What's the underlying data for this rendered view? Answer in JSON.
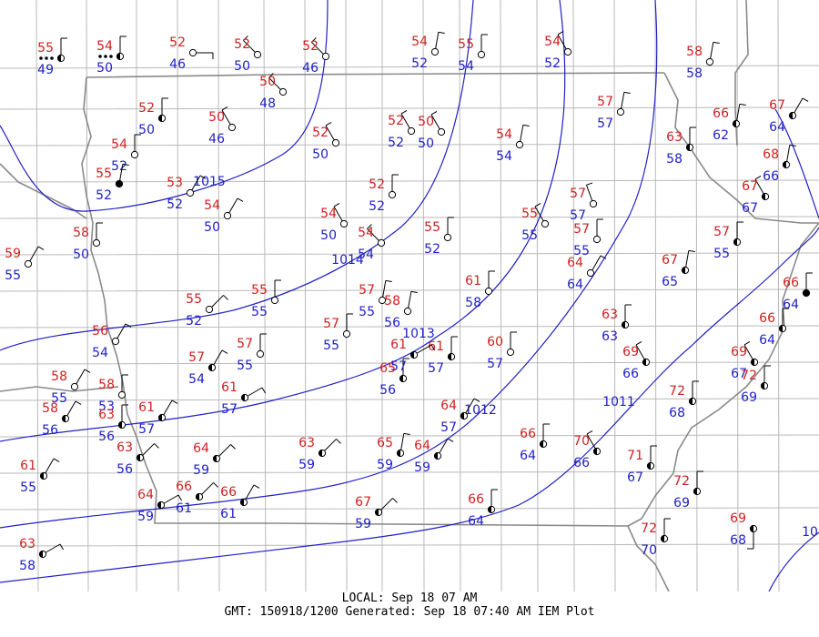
{
  "footer": {
    "local_line": "LOCAL: Sep 18 07 AM",
    "gmt_line": "GMT: 150918/1200 Generated: Sep 18 07:40 AM IEM Plot"
  },
  "colors": {
    "temperature": "#d02020",
    "dewpoint": "#2020c8",
    "isobar": "#2020c8",
    "county_line": "#b4b4b4",
    "state_line": "#8c8c8c"
  },
  "isobar_labels": [
    "1015",
    "1014",
    "1013",
    "1012",
    "1011",
    "10"
  ],
  "stations": [
    {
      "t": "55",
      "d": "49",
      "wx": "rain"
    },
    {
      "t": "54",
      "d": "50",
      "wx": "rain"
    },
    {
      "t": "52",
      "d": "46"
    },
    {
      "t": "52",
      "d": "50"
    },
    {
      "t": "52",
      "d": "46"
    },
    {
      "t": "54",
      "d": "52"
    },
    {
      "t": "55",
      "d": "54"
    },
    {
      "t": "54",
      "d": "52"
    },
    {
      "t": "58",
      "d": "58"
    },
    {
      "t": "50",
      "d": "48"
    },
    {
      "t": "52",
      "d": "50"
    },
    {
      "t": "50",
      "d": "46"
    },
    {
      "t": "52",
      "d": "52"
    },
    {
      "t": "50",
      "d": "50"
    },
    {
      "t": "57",
      "d": "57"
    },
    {
      "t": "66",
      "d": "62"
    },
    {
      "t": "67",
      "d": "64"
    },
    {
      "t": "54",
      "d": "52"
    },
    {
      "t": "52",
      "d": "50"
    },
    {
      "t": "54",
      "d": "54"
    },
    {
      "t": "63",
      "d": "58"
    },
    {
      "t": "55",
      "d": "52"
    },
    {
      "t": "53",
      "d": "52"
    },
    {
      "t": "1015",
      "d": ""
    },
    {
      "t": "54",
      "d": "50"
    },
    {
      "t": "52",
      "d": "52"
    },
    {
      "t": "68",
      "d": "66"
    },
    {
      "t": "67",
      "d": "67"
    },
    {
      "t": "54",
      "d": "50"
    },
    {
      "t": "57",
      "d": "57"
    },
    {
      "t": "55",
      "d": "55"
    },
    {
      "t": "55",
      "d": "52"
    },
    {
      "t": "58",
      "d": "50"
    },
    {
      "t": "54",
      "d": "54"
    },
    {
      "t": "57",
      "d": "55"
    },
    {
      "t": "57",
      "d": "55"
    },
    {
      "t": "67",
      "d": "65"
    },
    {
      "t": "64",
      "d": "64"
    },
    {
      "t": "61",
      "d": "58"
    },
    {
      "t": "59",
      "d": "55"
    },
    {
      "t": "55",
      "d": "52"
    },
    {
      "t": "55",
      "d": "55"
    },
    {
      "t": "57",
      "d": "55"
    },
    {
      "t": "58",
      "d": "56"
    },
    {
      "t": "57",
      "d": "55"
    },
    {
      "t": "63",
      "d": "63"
    },
    {
      "t": "66",
      "d": "64"
    },
    {
      "t": "66",
      "d": "64"
    },
    {
      "t": "56",
      "d": "54"
    },
    {
      "t": "57",
      "d": "55"
    },
    {
      "t": "57",
      "d": "54"
    },
    {
      "t": "61",
      "d": "57"
    },
    {
      "t": "65",
      "d": "56"
    },
    {
      "t": "61",
      "d": "57"
    },
    {
      "t": "60",
      "d": "57"
    },
    {
      "t": "69",
      "d": "66"
    },
    {
      "t": "69",
      "d": "67"
    },
    {
      "t": "72",
      "d": "69"
    },
    {
      "t": "58",
      "d": "55"
    },
    {
      "t": "58",
      "d": "53"
    },
    {
      "t": "58",
      "d": "56"
    },
    {
      "t": "63",
      "d": "56"
    },
    {
      "t": "61",
      "d": "57"
    },
    {
      "t": "61",
      "d": "57"
    },
    {
      "t": "64",
      "d": "57"
    },
    {
      "t": "72",
      "d": "68"
    },
    {
      "t": "66",
      "d": "64"
    },
    {
      "t": "70",
      "d": "66"
    },
    {
      "t": "63",
      "d": "56"
    },
    {
      "t": "64",
      "d": "59"
    },
    {
      "t": "63",
      "d": "59"
    },
    {
      "t": "65",
      "d": "59"
    },
    {
      "t": "64",
      "d": "59"
    },
    {
      "t": "71",
      "d": "67"
    },
    {
      "t": "72",
      "d": "69"
    },
    {
      "t": "61",
      "d": "55"
    },
    {
      "t": "66",
      "d": "61"
    },
    {
      "t": "66",
      "d": "61"
    },
    {
      "t": "70",
      "d": "69"
    },
    {
      "t": "64",
      "d": "59"
    },
    {
      "t": "67",
      "d": "59"
    },
    {
      "t": "66",
      "d": "64"
    },
    {
      "t": "72",
      "d": "70"
    },
    {
      "t": "69",
      "d": "68"
    },
    {
      "t": "63",
      "d": "58"
    }
  ]
}
